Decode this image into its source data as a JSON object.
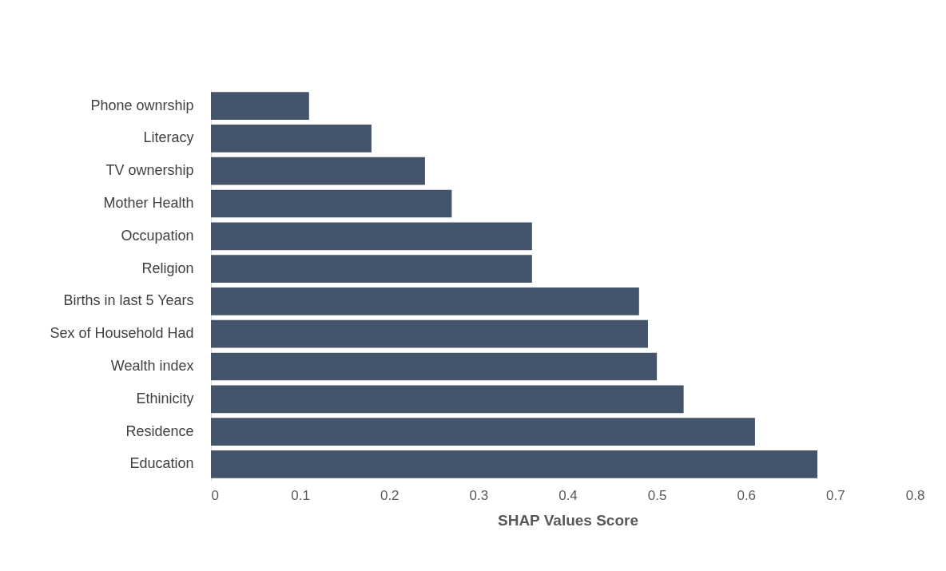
{
  "chart_data": {
    "type": "bar",
    "orientation": "horizontal",
    "xlabel": "SHAP Values Score",
    "categories": [
      "Phone ownrship",
      "Literacy",
      "TV ownership",
      "Mother Health",
      "Occupation ",
      "Religion ",
      "Births in last 5 Years",
      "Sex of Household Had",
      "Wealth index",
      "Ethinicity",
      "Residence",
      "Education"
    ],
    "values": [
      0.11,
      0.18,
      0.24,
      0.27,
      0.36,
      0.36,
      0.48,
      0.49,
      0.5,
      0.53,
      0.61,
      0.68
    ],
    "color": "#44546a",
    "xlim": [
      0,
      0.8
    ],
    "xticks": [
      {
        "value": 0,
        "label": "0"
      },
      0.1,
      0.2,
      0.3,
      0.4,
      0.5,
      0.6,
      0.7,
      0.8
    ],
    "grid": false
  }
}
